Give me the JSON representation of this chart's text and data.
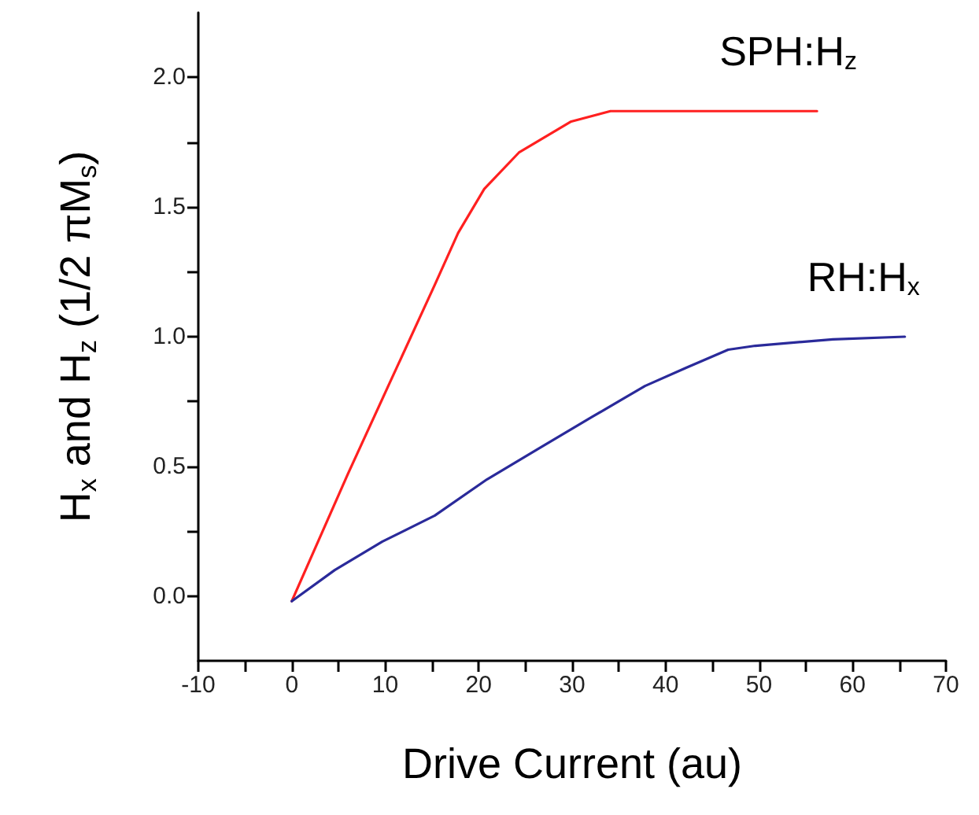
{
  "chart_data": {
    "type": "line",
    "xlabel": "Drive Current (au)",
    "ylabel": "H$_{x}$ and H$_{z}$ (1/2 πM$_{s}$)",
    "series": [
      {
        "name": "SPH:H$_{z}$",
        "color": "#ff2020",
        "x": [
          0,
          6.0,
          10.2,
          15.3,
          17.8,
          20.6,
          24.3,
          29.9,
          34.1,
          56.2
        ],
        "values": [
          -0.02,
          0.47,
          0.8,
          1.2,
          1.4,
          1.57,
          1.71,
          1.83,
          1.87,
          1.87
        ]
      },
      {
        "name": "RH:H$_{x}$",
        "color": "#2a2a9a",
        "x": [
          0,
          4.6,
          9.7,
          15.3,
          20.9,
          26.5,
          32.1,
          37.8,
          42.2,
          46.7,
          49.6,
          57.9,
          65.6
        ],
        "values": [
          -0.02,
          0.1,
          0.21,
          0.31,
          0.45,
          0.57,
          0.69,
          0.81,
          0.88,
          0.95,
          0.965,
          0.99,
          1.0
        ]
      }
    ],
    "xlim": [
      -10,
      70
    ],
    "xticks": [
      -10,
      {
        "value": -5,
        "label": null
      },
      0,
      {
        "value": 5,
        "label": null
      },
      10,
      {
        "value": 15,
        "label": null
      },
      20,
      {
        "value": 25,
        "label": null
      },
      30,
      {
        "value": 35,
        "label": null
      },
      40,
      {
        "value": 45,
        "label": null
      },
      50,
      {
        "value": 55,
        "label": null
      },
      60,
      {
        "value": 65,
        "label": null
      },
      70
    ],
    "ylim": [
      -0.25,
      2.25
    ],
    "yticks": [
      {
        "value": 0,
        "label": "0.0"
      },
      {
        "value": 0.25,
        "label": null
      },
      {
        "value": 0.5,
        "label": "0.5"
      },
      {
        "value": 0.75,
        "label": null
      },
      {
        "value": 1,
        "label": "1.0"
      },
      {
        "value": 1.25,
        "label": null
      },
      {
        "value": 1.5,
        "label": "1.5"
      },
      {
        "value": 1.75,
        "label": null
      },
      {
        "value": 2,
        "label": "2.0"
      }
    ],
    "grid": false,
    "legend": false,
    "marker": "none",
    "line_style": "solid"
  }
}
